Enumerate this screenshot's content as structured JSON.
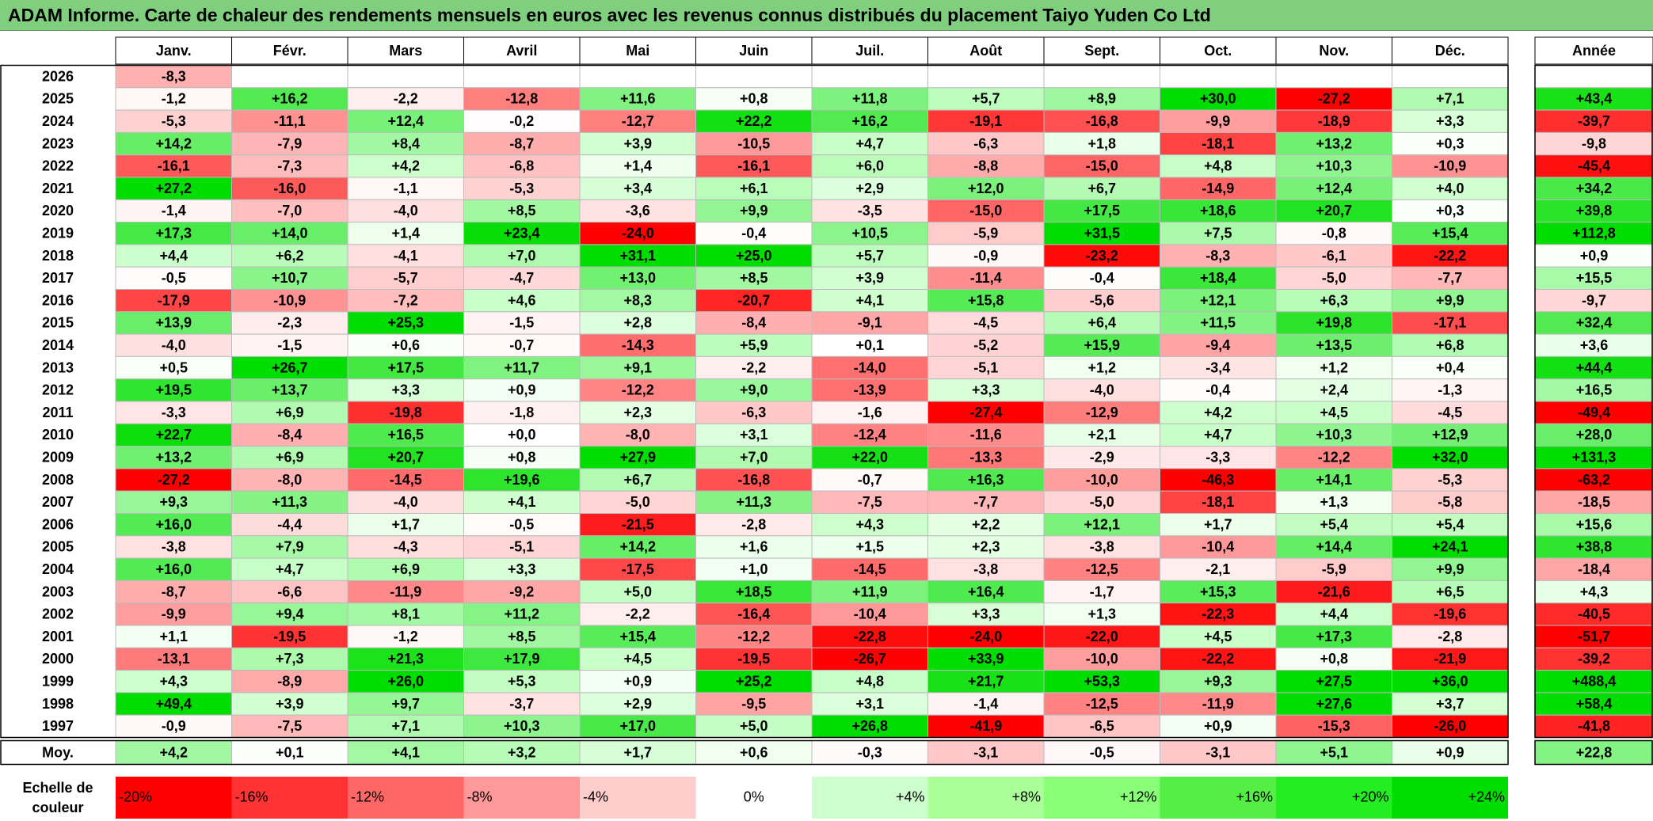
{
  "title": "ADAM Informe. Carte de chaleur des rendements mensuels en euros avec les revenus connus distribués du placement Taiyo Yuden Co Ltd",
  "chart_data": {
    "type": "heatmap",
    "columns": [
      "Janv.",
      "Févr.",
      "Mars",
      "Avril",
      "Mai",
      "Juin",
      "Juil.",
      "Août",
      "Sept.",
      "Oct.",
      "Nov.",
      "Déc."
    ],
    "year_column_label": "Année",
    "average_label": "Moy.",
    "rows": [
      {
        "year": "2026",
        "months": [
          "-8,3",
          "",
          "",
          "",
          "",
          "",
          "",
          "",
          "",
          "",
          "",
          ""
        ],
        "annual": ""
      },
      {
        "year": "2025",
        "months": [
          "-1,2",
          "+16,2",
          "-2,2",
          "-12,8",
          "+11,6",
          "+0,8",
          "+11,8",
          "+5,7",
          "+8,9",
          "+30,0",
          "-27,2",
          "+7,1"
        ],
        "annual": "+43,4"
      },
      {
        "year": "2024",
        "months": [
          "-5,3",
          "-11,1",
          "+12,4",
          "-0,2",
          "-12,7",
          "+22,2",
          "+16,2",
          "-19,1",
          "-16,8",
          "-9,9",
          "-18,9",
          "+3,3"
        ],
        "annual": "-39,7"
      },
      {
        "year": "2023",
        "months": [
          "+14,2",
          "-7,9",
          "+8,4",
          "-8,7",
          "+3,9",
          "-10,5",
          "+4,7",
          "-6,3",
          "+1,8",
          "-18,1",
          "+13,2",
          "+0,3"
        ],
        "annual": "-9,8"
      },
      {
        "year": "2022",
        "months": [
          "-16,1",
          "-7,3",
          "+4,2",
          "-6,8",
          "+1,4",
          "-16,1",
          "+6,0",
          "-8,8",
          "-15,0",
          "+4,8",
          "+10,3",
          "-10,9"
        ],
        "annual": "-45,4"
      },
      {
        "year": "2021",
        "months": [
          "+27,2",
          "-16,0",
          "-1,1",
          "-5,3",
          "+3,4",
          "+6,1",
          "+2,9",
          "+12,0",
          "+6,7",
          "-14,9",
          "+12,4",
          "+4,0"
        ],
        "annual": "+34,2"
      },
      {
        "year": "2020",
        "months": [
          "-1,4",
          "-7,0",
          "-4,0",
          "+8,5",
          "-3,6",
          "+9,9",
          "-3,5",
          "-15,0",
          "+17,5",
          "+18,6",
          "+20,7",
          "+0,3"
        ],
        "annual": "+39,8"
      },
      {
        "year": "2019",
        "months": [
          "+17,3",
          "+14,0",
          "+1,4",
          "+23,4",
          "-24,0",
          "-0,4",
          "+10,5",
          "-5,9",
          "+31,5",
          "+7,5",
          "-0,8",
          "+15,4"
        ],
        "annual": "+112,8"
      },
      {
        "year": "2018",
        "months": [
          "+4,4",
          "+6,2",
          "-4,1",
          "+7,0",
          "+31,1",
          "+25,0",
          "+5,7",
          "-0,9",
          "-23,2",
          "-8,3",
          "-6,1",
          "-22,2"
        ],
        "annual": "+0,9"
      },
      {
        "year": "2017",
        "months": [
          "-0,5",
          "+10,7",
          "-5,7",
          "-4,7",
          "+13,0",
          "+8,5",
          "+3,9",
          "-11,4",
          "-0,4",
          "+18,4",
          "-5,0",
          "-7,7"
        ],
        "annual": "+15,5"
      },
      {
        "year": "2016",
        "months": [
          "-17,9",
          "-10,9",
          "-7,2",
          "+4,6",
          "+8,3",
          "-20,7",
          "+4,1",
          "+15,8",
          "-5,6",
          "+12,1",
          "+6,3",
          "+9,9"
        ],
        "annual": "-9,7"
      },
      {
        "year": "2015",
        "months": [
          "+13,9",
          "-2,3",
          "+25,3",
          "-1,5",
          "+2,8",
          "-8,4",
          "-9,1",
          "-4,5",
          "+6,4",
          "+11,5",
          "+19,8",
          "-17,1"
        ],
        "annual": "+32,4"
      },
      {
        "year": "2014",
        "months": [
          "-4,0",
          "-1,5",
          "+0,6",
          "-0,7",
          "-14,3",
          "+5,9",
          "+0,1",
          "-5,2",
          "+15,9",
          "-9,4",
          "+13,5",
          "+6,8"
        ],
        "annual": "+3,6"
      },
      {
        "year": "2013",
        "months": [
          "+0,5",
          "+26,7",
          "+17,5",
          "+11,7",
          "+9,1",
          "-2,2",
          "-14,0",
          "-5,1",
          "+1,2",
          "-3,4",
          "+1,2",
          "+0,4"
        ],
        "annual": "+44,4"
      },
      {
        "year": "2012",
        "months": [
          "+19,5",
          "+13,7",
          "+3,3",
          "+0,9",
          "-12,2",
          "+9,0",
          "-13,9",
          "+3,3",
          "-4,0",
          "-0,4",
          "+2,4",
          "-1,3"
        ],
        "annual": "+16,5"
      },
      {
        "year": "2011",
        "months": [
          "-3,3",
          "+6,9",
          "-19,8",
          "-1,8",
          "+2,3",
          "-6,3",
          "-1,6",
          "-27,4",
          "-12,9",
          "+4,2",
          "+4,5",
          "-4,5"
        ],
        "annual": "-49,4"
      },
      {
        "year": "2010",
        "months": [
          "+22,7",
          "-8,4",
          "+16,5",
          "+0,0",
          "-8,0",
          "+3,1",
          "-12,4",
          "-11,6",
          "+2,1",
          "+4,7",
          "+10,3",
          "+12,9"
        ],
        "annual": "+28,0"
      },
      {
        "year": "2009",
        "months": [
          "+13,2",
          "+6,9",
          "+20,7",
          "+0,8",
          "+27,9",
          "+7,0",
          "+22,0",
          "-13,3",
          "-2,9",
          "-3,3",
          "-12,2",
          "+32,0"
        ],
        "annual": "+131,3"
      },
      {
        "year": "2008",
        "months": [
          "-27,2",
          "-8,0",
          "-14,5",
          "+19,6",
          "+6,7",
          "-16,8",
          "-0,7",
          "+16,3",
          "-10,0",
          "-46,3",
          "+14,1",
          "-5,3"
        ],
        "annual": "-63,2"
      },
      {
        "year": "2007",
        "months": [
          "+9,3",
          "+11,3",
          "-4,0",
          "+4,1",
          "-5,0",
          "+11,3",
          "-7,5",
          "-7,7",
          "-5,0",
          "-18,1",
          "+1,3",
          "-5,8"
        ],
        "annual": "-18,5"
      },
      {
        "year": "2006",
        "months": [
          "+16,0",
          "-4,4",
          "+1,7",
          "-0,5",
          "-21,5",
          "-2,8",
          "+4,3",
          "+2,2",
          "+12,1",
          "+1,7",
          "+5,4",
          "+5,4"
        ],
        "annual": "+15,6"
      },
      {
        "year": "2005",
        "months": [
          "-3,8",
          "+7,9",
          "-4,3",
          "-5,1",
          "+14,2",
          "+1,6",
          "+1,5",
          "+2,3",
          "-3,8",
          "-10,4",
          "+14,4",
          "+24,1"
        ],
        "annual": "+38,8"
      },
      {
        "year": "2004",
        "months": [
          "+16,0",
          "+4,7",
          "+6,9",
          "+3,3",
          "-17,5",
          "+1,0",
          "-14,5",
          "-3,8",
          "-12,5",
          "-2,1",
          "-5,9",
          "+9,9"
        ],
        "annual": "-18,4"
      },
      {
        "year": "2003",
        "months": [
          "-8,7",
          "-6,6",
          "-11,9",
          "-9,2",
          "+5,0",
          "+18,5",
          "+11,9",
          "+16,4",
          "-1,7",
          "+15,3",
          "-21,6",
          "+6,5"
        ],
        "annual": "+4,3"
      },
      {
        "year": "2002",
        "months": [
          "-9,9",
          "+9,4",
          "+8,1",
          "+11,2",
          "-2,2",
          "-16,4",
          "-10,4",
          "+3,3",
          "+1,3",
          "-22,3",
          "+4,4",
          "-19,6"
        ],
        "annual": "-40,5"
      },
      {
        "year": "2001",
        "months": [
          "+1,1",
          "-19,5",
          "-1,2",
          "+8,5",
          "+15,4",
          "-12,2",
          "-22,8",
          "-24,0",
          "-22,0",
          "+4,5",
          "+17,3",
          "-2,8"
        ],
        "annual": "-51,7"
      },
      {
        "year": "2000",
        "months": [
          "-13,1",
          "+7,3",
          "+21,3",
          "+17,9",
          "+4,5",
          "-19,5",
          "-26,7",
          "+33,9",
          "-10,0",
          "-22,2",
          "+0,8",
          "-21,9"
        ],
        "annual": "-39,2"
      },
      {
        "year": "1999",
        "months": [
          "+4,3",
          "-8,9",
          "+26,0",
          "+5,3",
          "+0,9",
          "+25,2",
          "+4,8",
          "+21,7",
          "+53,3",
          "+9,3",
          "+27,5",
          "+36,0"
        ],
        "annual": "+488,4"
      },
      {
        "year": "1998",
        "months": [
          "+49,4",
          "+3,9",
          "+9,7",
          "-3,7",
          "+2,9",
          "-9,5",
          "+3,1",
          "-1,4",
          "-12,5",
          "-11,9",
          "+27,6",
          "+3,7"
        ],
        "annual": "+58,4"
      },
      {
        "year": "1997",
        "months": [
          "-0,9",
          "-7,5",
          "+7,1",
          "+10,3",
          "+17,0",
          "+5,0",
          "+26,8",
          "-41,9",
          "-6,5",
          "+0,9",
          "-15,3",
          "-26,0"
        ],
        "annual": "-41,8"
      }
    ],
    "averages": {
      "months": [
        "+4,2",
        "+0,1",
        "+4,1",
        "+3,2",
        "+1,7",
        "+0,6",
        "-0,3",
        "-3,1",
        "-0,5",
        "-3,1",
        "+5,1",
        "+0,9"
      ],
      "annual": "+22,8"
    },
    "color_scale": {
      "label": "Echelle de couleur",
      "stops": [
        "-20%",
        "-16%",
        "-12%",
        "-8%",
        "-4%",
        "0%",
        "+4%",
        "+8%",
        "+12%",
        "+16%",
        "+20%",
        "+24%"
      ],
      "colors": [
        "#ff0000",
        "#ff3333",
        "#ff6666",
        "#ff9999",
        "#ffcccc",
        "#ffffff",
        "#ccffcc",
        "#aaff99",
        "#88ff77",
        "#55ee44",
        "#22ee22",
        "#00dd00"
      ]
    }
  }
}
